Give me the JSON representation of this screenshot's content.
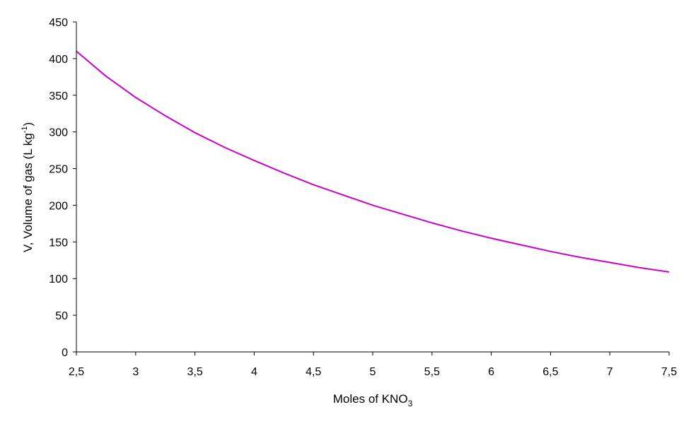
{
  "chart_data": {
    "type": "line",
    "title": "",
    "xlabel": "Moles of KNO",
    "xlabel_sub": "3",
    "ylabel": "V, Volume of gas (L kg",
    "ylabel_sup": "-1",
    "ylabel_end": ")",
    "xlim": [
      2.5,
      7.5
    ],
    "ylim": [
      0,
      450
    ],
    "x_ticks": [
      "2,5",
      "3",
      "3,5",
      "4",
      "4,5",
      "5",
      "5,5",
      "6",
      "6,5",
      "7",
      "7,5"
    ],
    "y_ticks": [
      "0",
      "50",
      "100",
      "150",
      "200",
      "250",
      "300",
      "350",
      "400",
      "450"
    ],
    "grid": false,
    "legend": false,
    "series": [
      {
        "color": "#cc00cc",
        "x": [
          2.5,
          2.75,
          3.0,
          3.25,
          3.5,
          3.75,
          4.0,
          4.25,
          4.5,
          4.75,
          5.0,
          5.25,
          5.5,
          5.75,
          6.0,
          6.25,
          6.5,
          6.75,
          7.0,
          7.25,
          7.5
        ],
        "y": [
          410,
          376,
          347,
          322,
          299,
          279,
          261,
          244,
          228,
          214,
          200,
          188,
          176,
          165,
          155,
          146,
          137,
          129,
          122,
          115,
          109
        ]
      }
    ]
  }
}
